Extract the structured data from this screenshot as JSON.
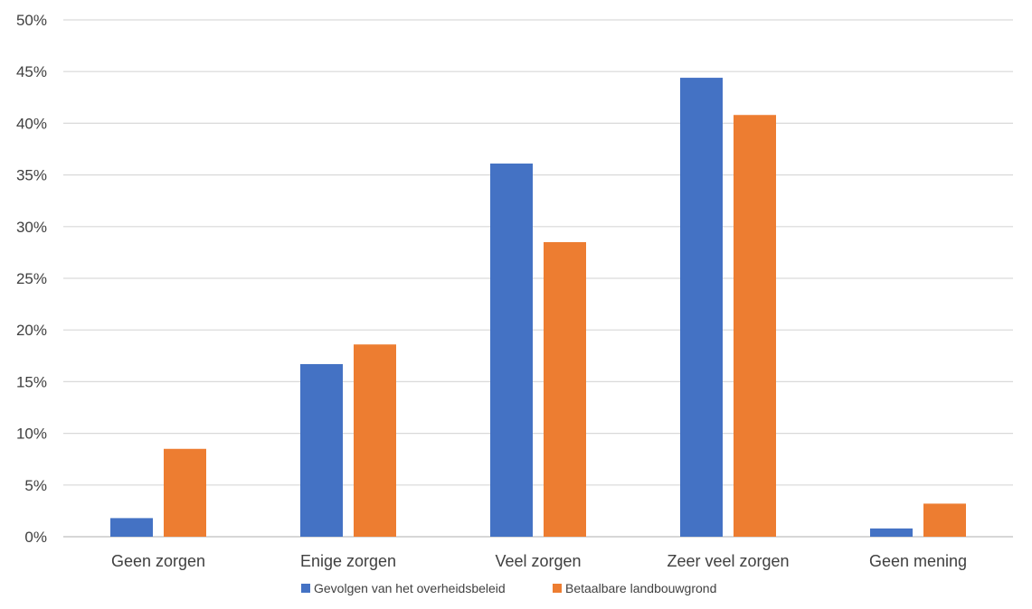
{
  "chart_data": {
    "type": "bar",
    "categories": [
      "Geen zorgen",
      "Enige zorgen",
      "Veel zorgen",
      "Zeer veel zorgen",
      "Geen mening"
    ],
    "series": [
      {
        "name": "Gevolgen van het overheidsbeleid",
        "color": "#4472C4",
        "values": [
          1.8,
          16.7,
          36.1,
          44.4,
          0.8
        ]
      },
      {
        "name": "Betaalbare landbouwgrond",
        "color": "#ED7D31",
        "values": [
          8.5,
          18.6,
          28.5,
          40.8,
          3.2
        ]
      }
    ],
    "ylim": [
      0,
      50
    ],
    "y_ticks": [
      "0%",
      "5%",
      "10%",
      "15%",
      "20%",
      "25%",
      "30%",
      "35%",
      "40%",
      "45%",
      "50%"
    ],
    "grid": true,
    "legend_position": "bottom"
  }
}
